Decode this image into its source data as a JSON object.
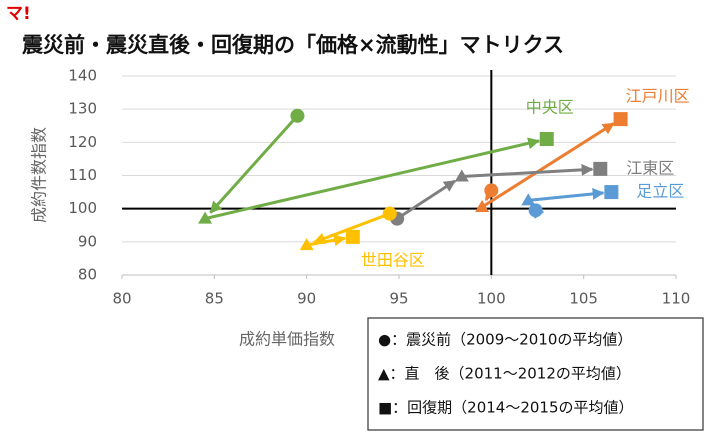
{
  "logo": "マ!",
  "chart_data": {
    "type": "scatter",
    "title": "震災前・震災直後・回復期の「価格×流動性」マトリクス",
    "x_label": "成約単価指数",
    "y_label": "成約件数指数",
    "xlim": [
      80,
      110
    ],
    "xticks": [
      80,
      85,
      90,
      95,
      100,
      105,
      110
    ],
    "ylim": [
      80,
      140
    ],
    "yticks": [
      80,
      90,
      100,
      110,
      120,
      130,
      140
    ],
    "vlines": [
      100
    ],
    "hlines": [
      100
    ],
    "legend": [
      "●：震災前（2009～2010の平均値）",
      "▲：直　後（2011～2012の平均値）",
      "■：回復期（2014～2015の平均値）"
    ],
    "series": [
      {
        "name": "中央区",
        "color": "#70ad47",
        "x": [
          89.5,
          84.5,
          103
        ],
        "values": [
          128,
          97,
          121
        ]
      },
      {
        "name": "江戸川区",
        "color": "#ed7d31",
        "x": [
          100,
          99.5,
          107
        ],
        "values": [
          105.5,
          100.5,
          127
        ]
      },
      {
        "name": "江東区",
        "color": "#7f7f7f",
        "x": [
          94.9,
          98.4,
          105.9
        ],
        "values": [
          97,
          109.7,
          112
        ]
      },
      {
        "name": "足立区",
        "color": "#5b9bd5",
        "x": [
          102.4,
          102,
          106.5
        ],
        "values": [
          99.5,
          102.5,
          105
        ]
      },
      {
        "name": "世田谷区",
        "color": "#ffc000",
        "x": [
          94.5,
          90,
          92.5
        ],
        "values": [
          98.5,
          89,
          91.5
        ]
      }
    ]
  }
}
